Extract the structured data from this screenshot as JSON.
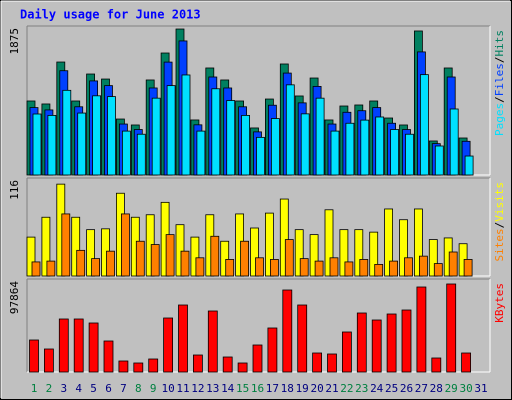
{
  "title": "Daily usage for June 2013",
  "legend_separator": "/",
  "chart_data": [
    {
      "type": "bar",
      "ylim": [
        0,
        1875
      ],
      "yticks": [
        1875
      ],
      "series": [
        {
          "name": "Hits",
          "color": "#008060",
          "values": [
            944,
            906,
            1441,
            944,
            1288,
            1224,
            714,
            638,
            1212,
            1556,
            1862,
            702,
            1365,
            1212,
            944,
            600,
            969,
            1416,
            1008,
            1237,
            702,
            880,
            893,
            944,
            727,
            638,
            1837,
            434,
            1365,
            472,
            null
          ]
        },
        {
          "name": "Files",
          "color": "#0040ff",
          "values": [
            860,
            830,
            1330,
            870,
            1200,
            1140,
            650,
            580,
            1110,
            1440,
            1710,
            640,
            1250,
            1110,
            870,
            550,
            890,
            1300,
            920,
            1130,
            650,
            800,
            820,
            860,
            660,
            580,
            1570,
            400,
            1250,
            430,
            null
          ]
        },
        {
          "name": "Pages",
          "color": "#00e0ff",
          "values": [
            778,
            760,
            1080,
            790,
            1010,
            1000,
            560,
            520,
            980,
            1140,
            1276,
            560,
            1100,
            950,
            760,
            480,
            720,
            1150,
            780,
            980,
            560,
            660,
            700,
            740,
            580,
            520,
            1280,
            370,
            842,
            242,
            null
          ]
        }
      ]
    },
    {
      "type": "bar",
      "ylim": [
        0,
        116
      ],
      "yticks": [
        116
      ],
      "series": [
        {
          "name": "Visits",
          "color": "#ffff00",
          "values": [
            47,
            71,
            111,
            71,
            56,
            57,
            100,
            71,
            74,
            89,
            62,
            47,
            74,
            42,
            75,
            58,
            76,
            93,
            56,
            50,
            80,
            56,
            56,
            53,
            81,
            68,
            81,
            44,
            46,
            39,
            null
          ]
        },
        {
          "name": "Sites",
          "color": "#ff8000",
          "values": [
            17,
            18,
            75,
            31,
            21,
            30,
            75,
            42,
            38,
            50,
            30,
            22,
            48,
            20,
            42,
            22,
            20,
            44,
            21,
            18,
            22,
            17,
            20,
            14,
            18,
            22,
            24,
            15,
            29,
            20,
            null
          ]
        }
      ]
    },
    {
      "type": "bar",
      "ylim": [
        0,
        97864
      ],
      "yticks": [
        97864
      ],
      "categories": [
        "1",
        "2",
        "3",
        "4",
        "5",
        "6",
        "7",
        "8",
        "9",
        "10",
        "11",
        "12",
        "13",
        "14",
        "15",
        "16",
        "17",
        "18",
        "19",
        "20",
        "21",
        "22",
        "23",
        "24",
        "25",
        "26",
        "27",
        "28",
        "29",
        "30",
        "31"
      ],
      "highlight_categories": [
        0,
        1,
        7,
        8,
        14,
        15,
        21,
        22,
        28,
        29
      ],
      "highlight_color": "#008040",
      "category_color": "#000080",
      "series": [
        {
          "name": "KBytes",
          "color": "#ff0000",
          "values": [
            34415,
            24735,
            57000,
            57000,
            52700,
            33340,
            11830,
            9680,
            13980,
            58070,
            72050,
            18280,
            65600,
            16130,
            9680,
            29040,
            47320,
            88180,
            72050,
            20430,
            19360,
            43020,
            63450,
            55920,
            62370,
            66670,
            91410,
            15060,
            94640,
            20430,
            null
          ]
        }
      ]
    }
  ]
}
